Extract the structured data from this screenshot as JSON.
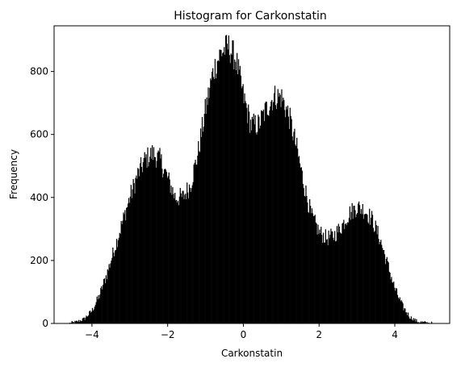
{
  "chart_data": {
    "type": "bar",
    "subtype": "histogram",
    "title": "Histogram for Carkonstatin",
    "xlabel": "Carkonstatin",
    "ylabel": "Frequency",
    "xlim": [
      -5.0,
      5.45
    ],
    "ylim": [
      0,
      945
    ],
    "xticks": [
      -4,
      -2,
      0,
      2,
      4
    ],
    "yticks": [
      0,
      200,
      400,
      600,
      800
    ],
    "bar_color": "#000000",
    "grid": false,
    "density_profile": [
      [
        -4.6,
        0
      ],
      [
        -4.4,
        5
      ],
      [
        -4.2,
        15
      ],
      [
        -4.0,
        40
      ],
      [
        -3.8,
        90
      ],
      [
        -3.6,
        160
      ],
      [
        -3.4,
        240
      ],
      [
        -3.2,
        320
      ],
      [
        -3.0,
        400
      ],
      [
        -2.8,
        470
      ],
      [
        -2.6,
        520
      ],
      [
        -2.4,
        540
      ],
      [
        -2.2,
        520
      ],
      [
        -2.0,
        460
      ],
      [
        -1.8,
        400
      ],
      [
        -1.6,
        400
      ],
      [
        -1.4,
        440
      ],
      [
        -1.2,
        540
      ],
      [
        -1.0,
        680
      ],
      [
        -0.8,
        800
      ],
      [
        -0.6,
        860
      ],
      [
        -0.4,
        880
      ],
      [
        -0.2,
        840
      ],
      [
        0.0,
        720
      ],
      [
        0.2,
        630
      ],
      [
        0.4,
        630
      ],
      [
        0.6,
        680
      ],
      [
        0.8,
        720
      ],
      [
        1.0,
        720
      ],
      [
        1.2,
        660
      ],
      [
        1.4,
        560
      ],
      [
        1.6,
        440
      ],
      [
        1.8,
        340
      ],
      [
        2.0,
        290
      ],
      [
        2.2,
        270
      ],
      [
        2.4,
        280
      ],
      [
        2.6,
        310
      ],
      [
        2.8,
        350
      ],
      [
        3.0,
        370
      ],
      [
        3.2,
        360
      ],
      [
        3.4,
        330
      ],
      [
        3.6,
        270
      ],
      [
        3.8,
        190
      ],
      [
        4.0,
        110
      ],
      [
        4.2,
        55
      ],
      [
        4.4,
        20
      ],
      [
        4.6,
        6
      ],
      [
        4.8,
        2
      ],
      [
        5.0,
        0
      ]
    ],
    "bin_width": 0.02,
    "x_range": [
      -4.6,
      5.0
    ]
  }
}
